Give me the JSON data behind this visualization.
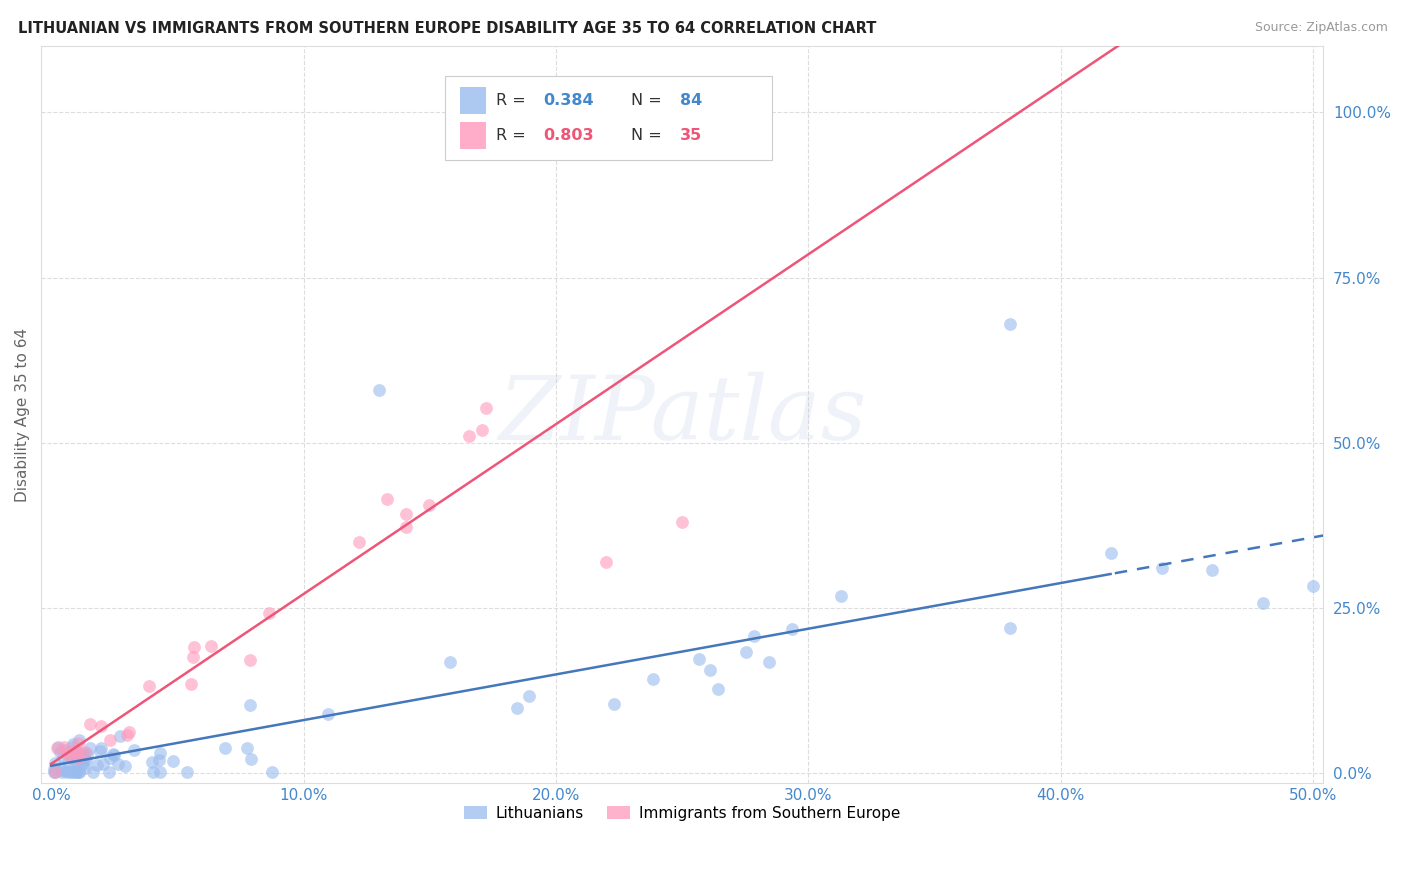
{
  "title": "LITHUANIAN VS IMMIGRANTS FROM SOUTHERN EUROPE DISABILITY AGE 35 TO 64 CORRELATION CHART",
  "source": "Source: ZipAtlas.com",
  "ylabel": "Disability Age 35 to 64",
  "xlim_min": -0.004,
  "xlim_max": 0.504,
  "ylim_min": -0.015,
  "ylim_max": 1.1,
  "xtick_vals": [
    0.0,
    0.1,
    0.2,
    0.3,
    0.4,
    0.5
  ],
  "xticklabels": [
    "0.0%",
    "10.0%",
    "20.0%",
    "30.0%",
    "40.0%",
    "50.0%"
  ],
  "ytick_vals": [
    0.0,
    0.25,
    0.5,
    0.75,
    1.0
  ],
  "yticklabels": [
    "0.0%",
    "25.0%",
    "50.0%",
    "75.0%",
    "100.0%"
  ],
  "r_blue": "0.384",
  "n_blue": "84",
  "r_pink": "0.803",
  "n_pink": "35",
  "color_blue_scatter": "#99BBEE",
  "color_pink_scatter": "#FF99BB",
  "color_blue_line": "#4477BB",
  "color_pink_line": "#EE5577",
  "color_axis_text": "#4488CC",
  "color_grid": "#DDDDDD",
  "watermark": "ZIPatlas",
  "legend_label_1": "Lithuanians",
  "legend_label_2": "Immigrants from Southern Europe"
}
